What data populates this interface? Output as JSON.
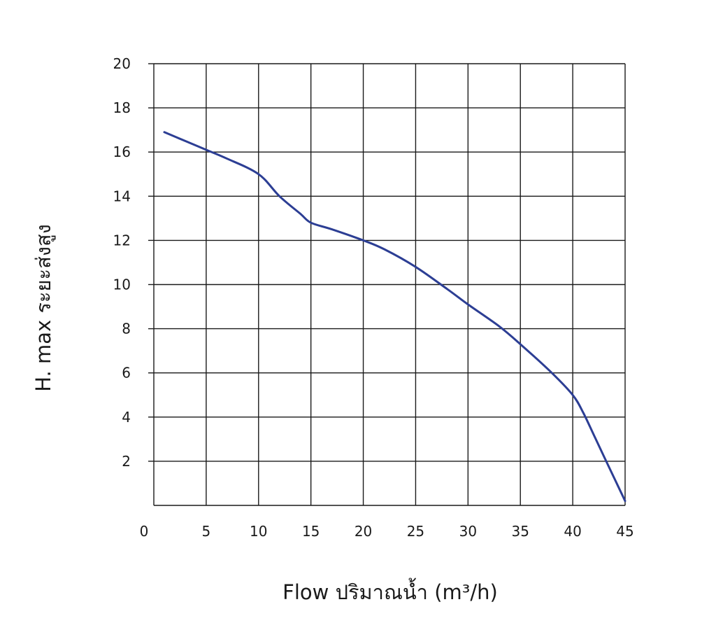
{
  "chart_data": {
    "type": "line",
    "title": "",
    "xlabel": "Flow  ปริมาณน้ำ (m³/h)",
    "ylabel": "H. max  ระยะส่งสูง",
    "xlim": [
      0,
      45
    ],
    "ylim": [
      0,
      20
    ],
    "x_ticks": [
      0,
      5,
      10,
      15,
      20,
      25,
      30,
      35,
      40,
      45
    ],
    "y_ticks": [
      2,
      4,
      6,
      8,
      10,
      12,
      14,
      16,
      18,
      20
    ],
    "grid": true,
    "line_color": "#2c3e94",
    "series": [
      {
        "x": [
          1,
          3,
          5,
          7,
          10,
          12,
          14,
          15,
          17,
          20,
          22,
          25,
          28,
          30,
          33,
          35,
          38,
          40,
          41,
          42,
          43,
          44,
          45
        ],
        "values": [
          16.9,
          16.5,
          16.1,
          15.7,
          15.0,
          14.0,
          13.2,
          12.8,
          12.5,
          12.0,
          11.6,
          10.8,
          9.8,
          9.1,
          8.1,
          7.3,
          6.0,
          5.0,
          4.2,
          3.2,
          2.2,
          1.2,
          0.2
        ]
      }
    ]
  }
}
